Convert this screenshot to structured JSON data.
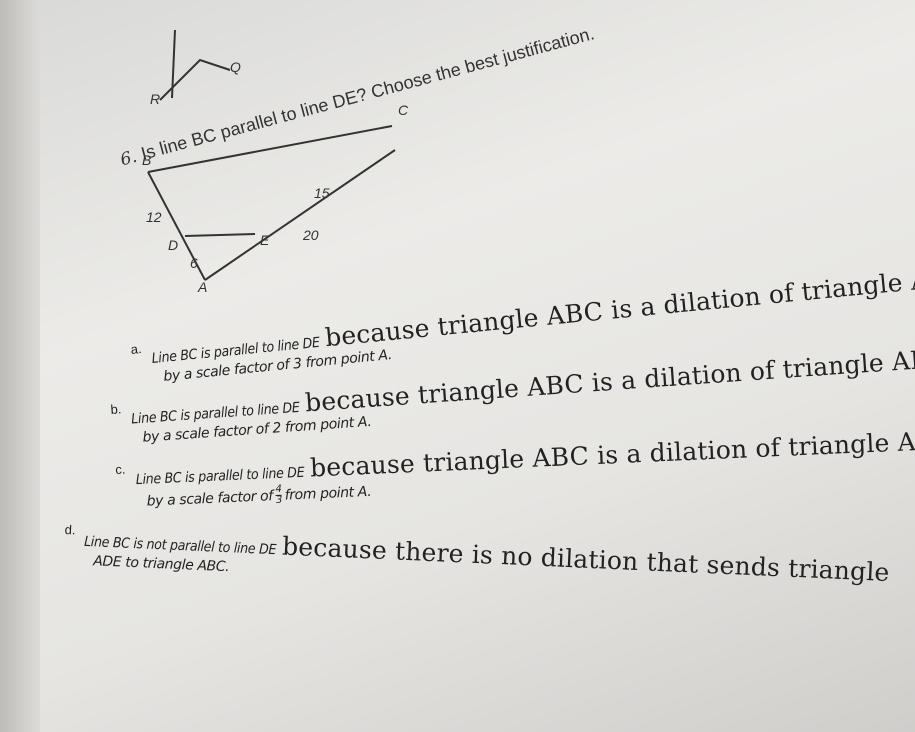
{
  "question": {
    "number": "6.",
    "text": "Is line BC parallel to line DE? Choose the best justification."
  },
  "diagram": {
    "labels": {
      "R": "R",
      "Q": "Q",
      "B": "B",
      "C": "C",
      "D": "D",
      "E": "E",
      "A": "A",
      "BD": "12",
      "CE": "15",
      "AE": "20",
      "AD": "6"
    }
  },
  "options": [
    {
      "letter": "a.",
      "lead": "Line BC is parallel to line DE",
      "main": "because triangle ABC is a dilation of triangle ADE",
      "cont": "by a scale factor of 3 from point A."
    },
    {
      "letter": "b.",
      "lead": "Line BC is parallel to line DE",
      "main": "because triangle ABC is a dilation of triangle ADE",
      "cont": "by a scale factor of 2 from point A."
    },
    {
      "letter": "c.",
      "lead": "Line BC is parallel to line DE",
      "main": "because triangle ABC is a dilation of triangle ADE",
      "cont": "by a scale factor of",
      "num": "4",
      "den": "3",
      "cont_end": "from point A."
    },
    {
      "letter": "d.",
      "lead": "Line BC is not parallel to line DE",
      "main": "because there is no dilation that sends triangle",
      "cont": "ADE to triangle ABC."
    }
  ]
}
